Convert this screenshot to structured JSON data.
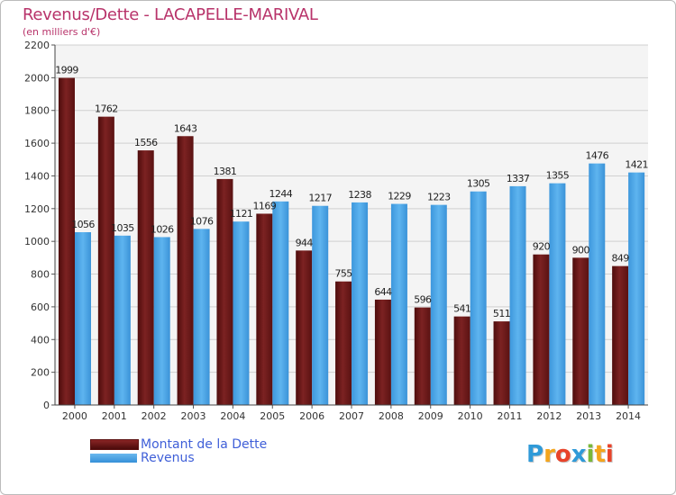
{
  "page": {
    "title": "Revenus/Dette - LACAPELLE-MARIVAL",
    "subtitle": "(en milliers d'€)"
  },
  "chart_data": {
    "type": "bar",
    "title": "Revenus/Dette - LACAPELLE-MARIVAL",
    "ylabel": "(en milliers d'€)",
    "xlabel": "",
    "ylim": [
      0,
      2200
    ],
    "yticks": [
      0,
      200,
      400,
      600,
      800,
      1000,
      1200,
      1400,
      1600,
      1800,
      2000,
      2200
    ],
    "grid": true,
    "legend_position": "bottom-left",
    "categories": [
      "2000",
      "2001",
      "2002",
      "2003",
      "2004",
      "2005",
      "2006",
      "2007",
      "2008",
      "2009",
      "2010",
      "2011",
      "2012",
      "2013",
      "2014"
    ],
    "series": [
      {
        "name": "Montant de la Dette",
        "color": "#6e1a1a",
        "values": [
          1999,
          1762,
          1556,
          1643,
          1381,
          1169,
          944,
          755,
          644,
          596,
          541,
          511,
          920,
          900,
          849
        ]
      },
      {
        "name": "Revenus",
        "color": "#4fa8e8",
        "values": [
          1056,
          1035,
          1026,
          1076,
          1121,
          1244,
          1217,
          1238,
          1229,
          1223,
          1305,
          1337,
          1355,
          1476,
          1421
        ]
      }
    ]
  },
  "logo": {
    "letters": [
      "P",
      "r",
      "o",
      "x",
      "i",
      "t",
      "i"
    ],
    "colors": [
      "#2f9ad8",
      "#f4a51c",
      "#e8432a",
      "#2f9ad8",
      "#7ab83a",
      "#f4a51c",
      "#e8432a"
    ]
  }
}
